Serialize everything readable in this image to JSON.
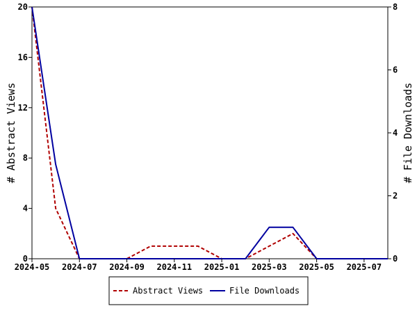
{
  "chart_data": {
    "type": "line",
    "title": "",
    "x": [
      "2024-05",
      "2024-06",
      "2024-07",
      "2024-08",
      "2024-09",
      "2024-10",
      "2024-11",
      "2024-12",
      "2025-01",
      "2025-02",
      "2025-03",
      "2025-04",
      "2025-05",
      "2025-06",
      "2025-07",
      "2025-08"
    ],
    "x_ticks": [
      "2024-05",
      "2024-07",
      "2024-09",
      "2024-11",
      "2025-01",
      "2025-03",
      "2025-05",
      "2025-07"
    ],
    "y_left": {
      "label": "# Abstract Views",
      "ylim": [
        0,
        20
      ],
      "ticks": [
        0,
        4,
        8,
        12,
        16,
        20
      ]
    },
    "y_right": {
      "label": "# File Downloads",
      "ylim": [
        0,
        8
      ],
      "ticks": [
        0,
        2,
        4,
        6,
        8
      ]
    },
    "series": [
      {
        "name": "Abstract Views",
        "axis": "left",
        "color": "#b00000",
        "dash": "dashed",
        "values": [
          20,
          4,
          0,
          0,
          0,
          1,
          1,
          1,
          0,
          0,
          1,
          2,
          0,
          0,
          0,
          0
        ]
      },
      {
        "name": "File Downloads",
        "axis": "right",
        "color": "#0000a0",
        "dash": "solid",
        "values": [
          8,
          3,
          0,
          0,
          0,
          0,
          0,
          0,
          0,
          0,
          1,
          1,
          0,
          0,
          0,
          0
        ]
      }
    ],
    "grid": false,
    "legend_position": "bottom-center"
  }
}
